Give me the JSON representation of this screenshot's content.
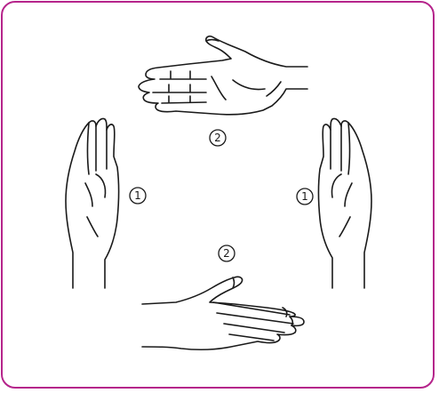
{
  "colors": {
    "frame": "#b5248b",
    "line": "#1a1a1a"
  },
  "labels": {
    "top": "2",
    "left": "1",
    "right": "1",
    "bottom": "2"
  },
  "hands": [
    {
      "name": "hand-top-palm-up",
      "icon": "open-hand-icon"
    },
    {
      "name": "hand-left-vertical",
      "icon": "flat-hand-icon"
    },
    {
      "name": "hand-right-vertical",
      "icon": "flat-hand-icon"
    },
    {
      "name": "hand-bottom-palm-down",
      "icon": "open-hand-icon"
    }
  ]
}
